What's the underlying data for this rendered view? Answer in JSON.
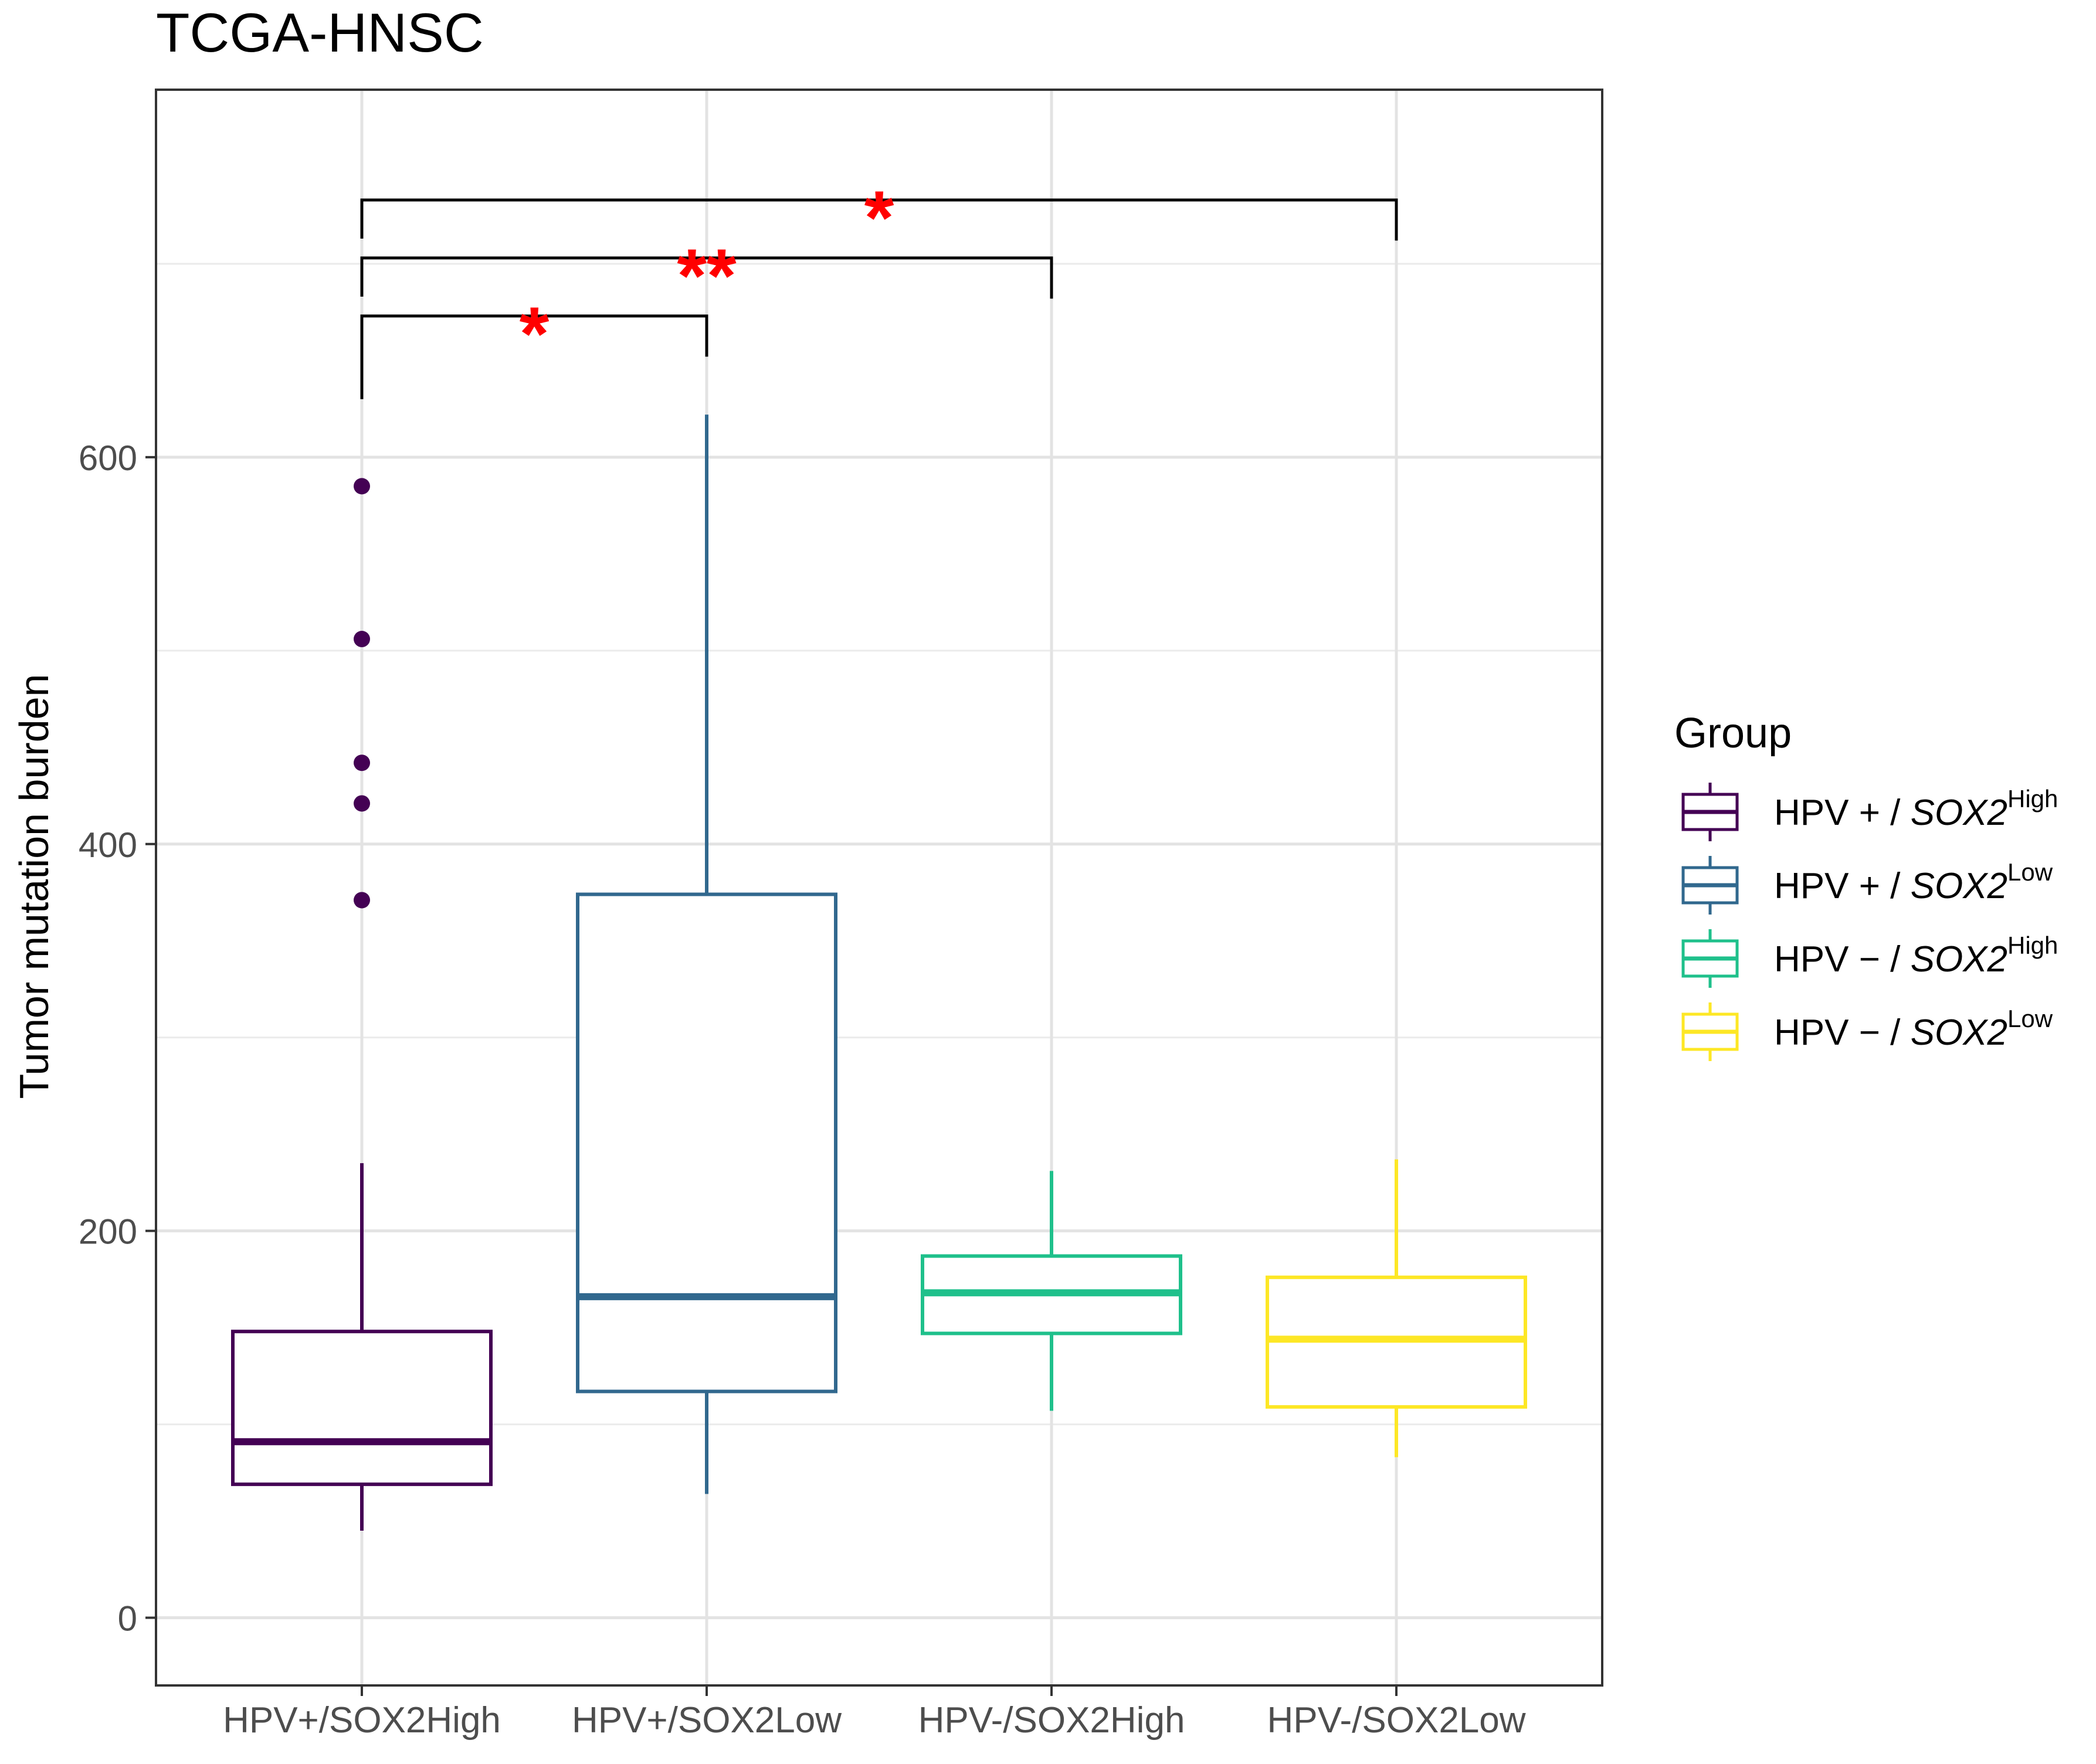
{
  "chart_data": {
    "type": "boxplot",
    "title": "TCGA-HNSC",
    "xlabel": "",
    "ylabel": "Tumor mutation burden",
    "ylim": [
      -35,
      790
    ],
    "yticks": [
      0,
      200,
      400,
      600
    ],
    "grid": true,
    "categories": [
      "HPV+/SOX2High",
      "HPV+/SOX2Low",
      "HPV-/SOX2High",
      "HPV-/SOX2Low"
    ],
    "boxes": [
      {
        "category": "HPV+/SOX2High",
        "whisker_low": 45,
        "q1": 69,
        "median": 91,
        "q3": 148,
        "whisker_high": 235,
        "outliers": [
          371,
          421,
          442,
          506,
          585
        ],
        "color": "#440154"
      },
      {
        "category": "HPV+/SOX2Low",
        "whisker_low": 64,
        "q1": 117,
        "median": 166,
        "q3": 374,
        "whisker_high": 622,
        "outliers": [],
        "color": "#31688E"
      },
      {
        "category": "HPV-/SOX2High",
        "whisker_low": 107,
        "q1": 147,
        "median": 168,
        "q3": 187,
        "whisker_high": 231,
        "outliers": [],
        "color": "#1FC08B"
      },
      {
        "category": "HPV-/SOX2Low",
        "whisker_low": 83,
        "q1": 109,
        "median": 144,
        "q3": 176,
        "whisker_high": 237,
        "outliers": [],
        "color": "#FDE725"
      }
    ],
    "significance": [
      {
        "from": 0,
        "to": 1,
        "label": "*",
        "y": 673,
        "left_tip": 630,
        "right_tip": 652
      },
      {
        "from": 0,
        "to": 2,
        "label": "**",
        "y": 703,
        "left_tip": 683,
        "right_tip": 682
      },
      {
        "from": 0,
        "to": 3,
        "label": "*",
        "y": 733,
        "left_tip": 713,
        "right_tip": 712
      }
    ],
    "significance_color": "#FF0000",
    "legend": {
      "title": "Group",
      "position": "right",
      "items": [
        {
          "prefix": "HPV + / ",
          "gene": "SOX2",
          "sup": "High",
          "color": "#440154"
        },
        {
          "prefix": "HPV + / ",
          "gene": "SOX2",
          "sup": "Low",
          "color": "#31688E"
        },
        {
          "prefix": "HPV − / ",
          "gene": "SOX2",
          "sup": "High",
          "color": "#1FC08B"
        },
        {
          "prefix": "HPV − / ",
          "gene": "SOX2",
          "sup": "Low",
          "color": "#FDE725"
        }
      ]
    }
  }
}
